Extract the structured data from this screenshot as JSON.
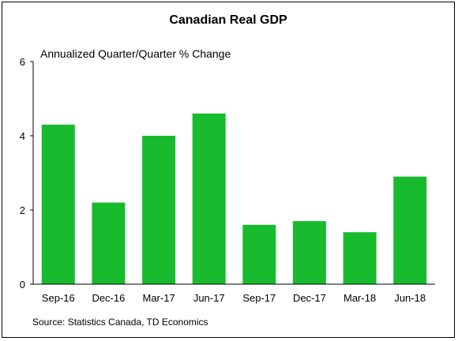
{
  "chart_data": {
    "type": "bar",
    "title": "Canadian Real GDP",
    "subtitle": "Annualized Quarter/Quarter % Change",
    "categories": [
      "Sep-16",
      "Dec-16",
      "Mar-17",
      "Jun-17",
      "Sep-17",
      "Dec-17",
      "Mar-18",
      "Jun-18"
    ],
    "values": [
      4.3,
      2.2,
      4.0,
      4.6,
      1.6,
      1.7,
      1.4,
      2.9
    ],
    "ylim": [
      0,
      6
    ],
    "yticks": [
      "0",
      "2",
      "4",
      "6"
    ],
    "grid": false,
    "bar_color": "#18bb2e",
    "source": "Source: Statistics Canada, TD Economics"
  }
}
